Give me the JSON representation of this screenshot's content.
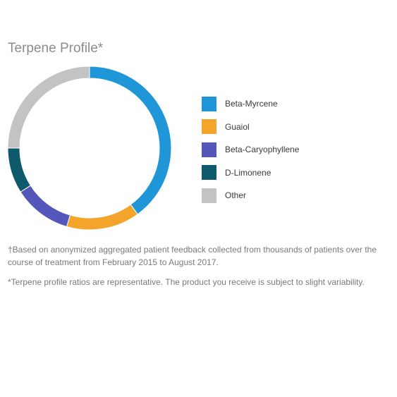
{
  "chart_data": {
    "type": "pie",
    "title": "Terpene Profile*",
    "donut": true,
    "legend_position": "right",
    "series": [
      {
        "name": "Beta-Myrcene",
        "value": 40,
        "color": "#1e96d8"
      },
      {
        "name": "Guaiol",
        "value": 14.5,
        "color": "#f3a42a"
      },
      {
        "name": "Beta-Caryophyllene",
        "value": 11.5,
        "color": "#5556b9"
      },
      {
        "name": "D-Limonene",
        "value": 9,
        "color": "#0e5a6c"
      },
      {
        "name": "Other",
        "value": 25,
        "color": "#c3c3c3"
      }
    ]
  },
  "footnotes": {
    "dagger": "†Based on anonymized aggregated patient feedback collected from thousands of patients over the course of treatment from February 2015 to August 2017.",
    "asterisk": "*Terpene profile ratios are representative. The product you receive is subject to slight variability."
  }
}
